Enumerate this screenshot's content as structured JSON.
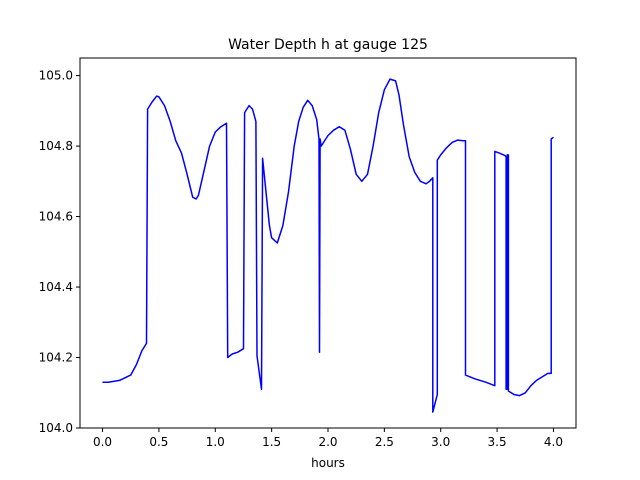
{
  "chart_data": {
    "type": "line",
    "title": "Water Depth h at gauge 125",
    "xlabel": "hours",
    "ylabel": "",
    "xlim": [
      -0.2,
      4.2
    ],
    "ylim": [
      104.0,
      105.05
    ],
    "xticks": [
      0.0,
      0.5,
      1.0,
      1.5,
      2.0,
      2.5,
      3.0,
      3.5,
      4.0
    ],
    "xtick_labels": [
      "0.0",
      "0.5",
      "1.0",
      "1.5",
      "2.0",
      "2.5",
      "3.0",
      "3.5",
      "4.0"
    ],
    "yticks": [
      104.0,
      104.2,
      104.4,
      104.6,
      104.8,
      105.0
    ],
    "ytick_labels": [
      "104.0",
      "104.2",
      "104.4",
      "104.6",
      "104.8",
      "105.0"
    ],
    "grid": false,
    "series": [
      {
        "color": "#0000ff",
        "x": [
          0.0,
          0.05,
          0.15,
          0.25,
          0.3,
          0.35,
          0.39,
          0.4,
          0.44,
          0.48,
          0.5,
          0.55,
          0.6,
          0.65,
          0.7,
          0.75,
          0.8,
          0.83,
          0.85,
          0.9,
          0.95,
          1.0,
          1.05,
          1.1,
          1.11,
          1.15,
          1.2,
          1.25,
          1.26,
          1.3,
          1.33,
          1.36,
          1.37,
          1.41,
          1.42,
          1.45,
          1.48,
          1.5,
          1.55,
          1.6,
          1.65,
          1.7,
          1.74,
          1.78,
          1.82,
          1.86,
          1.9,
          1.92,
          1.925,
          1.93,
          1.94,
          2.0,
          2.05,
          2.1,
          2.15,
          2.2,
          2.25,
          2.3,
          2.35,
          2.4,
          2.45,
          2.5,
          2.55,
          2.6,
          2.63,
          2.67,
          2.72,
          2.77,
          2.82,
          2.87,
          2.9,
          2.93,
          2.93,
          2.97,
          2.97,
          3.0,
          3.05,
          3.1,
          3.15,
          3.2,
          3.22,
          3.22,
          3.3,
          3.4,
          3.48,
          3.48,
          3.52,
          3.57,
          3.58,
          3.58,
          3.59,
          3.59,
          3.6,
          3.6,
          3.65,
          3.7,
          3.75,
          3.8,
          3.85,
          3.9,
          3.95,
          3.98,
          3.98,
          4.0
        ],
        "y": [
          104.13,
          104.13,
          104.135,
          104.15,
          104.18,
          104.22,
          104.24,
          104.905,
          104.925,
          104.942,
          104.94,
          104.915,
          104.87,
          104.815,
          104.78,
          104.72,
          104.655,
          104.65,
          104.66,
          104.73,
          104.8,
          104.84,
          104.855,
          104.865,
          104.2,
          104.21,
          104.215,
          104.225,
          104.895,
          104.915,
          104.905,
          104.87,
          104.205,
          104.11,
          104.765,
          104.67,
          104.575,
          104.54,
          104.525,
          104.575,
          104.67,
          104.8,
          104.87,
          104.91,
          104.93,
          104.915,
          104.875,
          104.82,
          104.215,
          104.82,
          104.8,
          104.83,
          104.845,
          104.855,
          104.845,
          104.79,
          104.72,
          104.7,
          104.72,
          104.8,
          104.895,
          104.96,
          104.99,
          104.985,
          104.945,
          104.86,
          104.77,
          104.725,
          104.7,
          104.693,
          104.7,
          104.71,
          104.045,
          104.095,
          104.76,
          104.775,
          104.795,
          104.81,
          104.817,
          104.815,
          104.815,
          104.15,
          104.14,
          104.13,
          104.12,
          104.785,
          104.78,
          104.773,
          104.77,
          104.11,
          104.11,
          104.775,
          104.775,
          104.105,
          104.095,
          104.092,
          104.1,
          104.12,
          104.135,
          104.145,
          104.155,
          104.155,
          104.82,
          104.825
        ]
      }
    ]
  }
}
